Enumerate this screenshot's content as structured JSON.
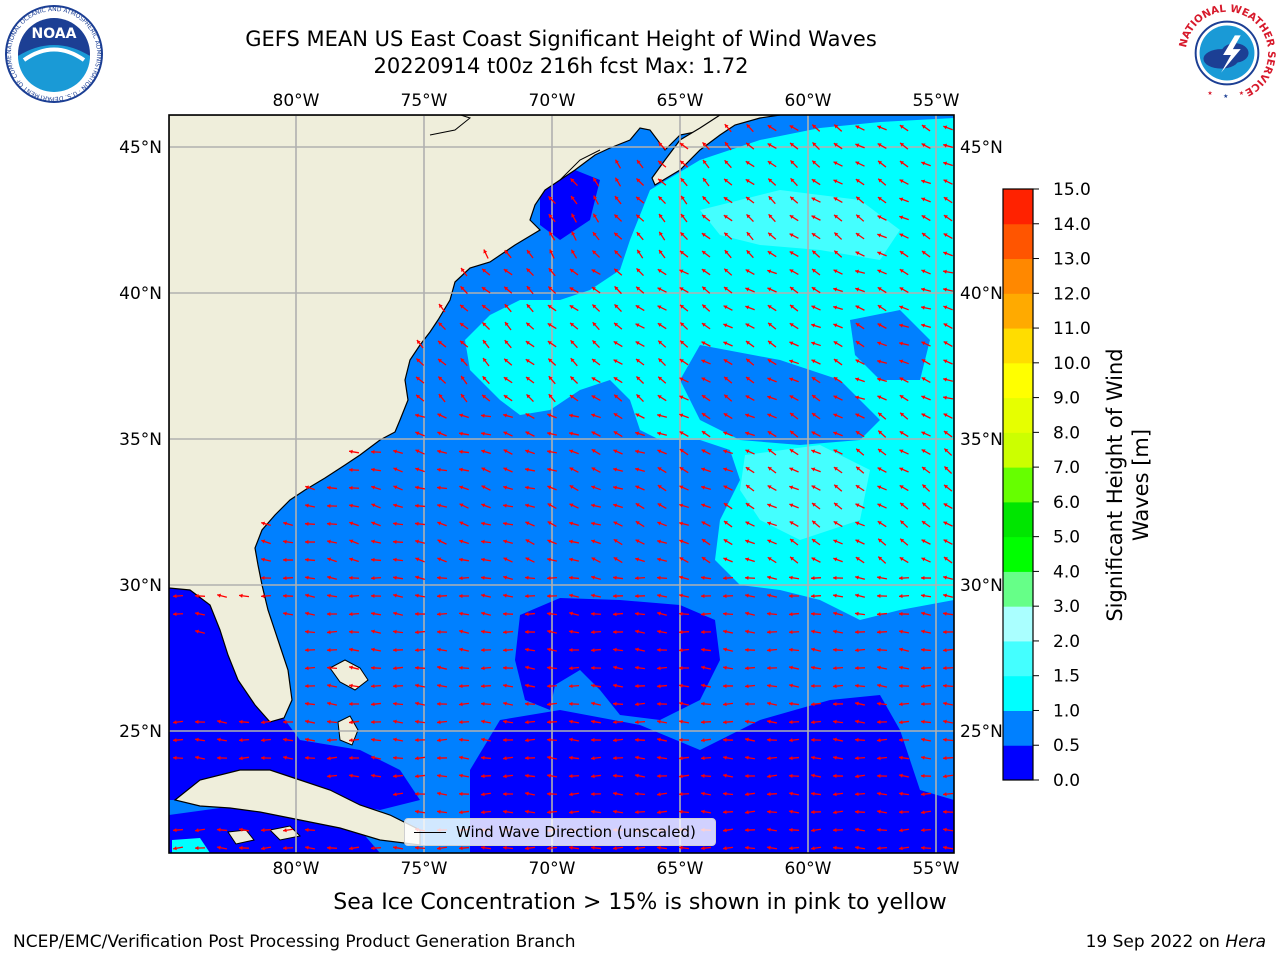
{
  "header": {
    "title_line1": "GEFS MEAN US East Coast Significant Height of Wind Waves",
    "title_line2": "20220914 t00z 216h fcst   Max: 1.72"
  },
  "logos": {
    "left": {
      "name": "noaa-logo",
      "text": "NOAA",
      "ring_text": "NATIONAL OCEANIC AND ATMOSPHERIC ADMINISTRATION · U.S. DEPARTMENT OF COMMERCE"
    },
    "right": {
      "name": "nws-logo",
      "ring_text": "NATIONAL WEATHER SERVICE"
    }
  },
  "map": {
    "lon_ticks": [
      "80°W",
      "75°W",
      "70°W",
      "65°W",
      "60°W",
      "55°W"
    ],
    "lat_ticks": [
      "45°N",
      "40°N",
      "35°N",
      "30°N",
      "25°N"
    ],
    "lon_values": [
      -80,
      -75,
      -70,
      -65,
      -60,
      -55
    ],
    "lat_values": [
      45,
      40,
      35,
      30,
      25
    ],
    "extent": {
      "lon_min": -85,
      "lon_max": -54.3,
      "lat_min": 20.0,
      "lat_max": 46.0
    },
    "colors": {
      "land": "#efeedb",
      "coast": "#000000",
      "grid": "#b0b0b0",
      "arrow": "#ff0000"
    },
    "legend_label": "Wind Wave Direction (unscaled)"
  },
  "colorbar": {
    "label": "Significant Height of Wind Waves [m]",
    "levels": [
      "0.0",
      "0.5",
      "1.0",
      "1.5",
      "2.0",
      "3.0",
      "4.0",
      "5.0",
      "6.0",
      "7.0",
      "8.0",
      "9.0",
      "10.0",
      "11.0",
      "12.0",
      "13.0",
      "14.0",
      "15.0"
    ],
    "colors": [
      "#0000ff",
      "#0080ff",
      "#00ffff",
      "#44ffff",
      "#aaffff",
      "#66ff88",
      "#00ff00",
      "#00e600",
      "#66ff00",
      "#ccff00",
      "#e6ff00",
      "#ffff00",
      "#ffdd00",
      "#ffaa00",
      "#ff8800",
      "#ff5500",
      "#ff2200"
    ]
  },
  "notes": {
    "ice": "Sea Ice Concentration > 15% is shown in pink to yellow"
  },
  "footer": {
    "left": "NCEP/EMC/Verification Post Processing Product Generation Branch",
    "right_prefix": "19 Sep 2022 on ",
    "right_host": "Hera"
  }
}
